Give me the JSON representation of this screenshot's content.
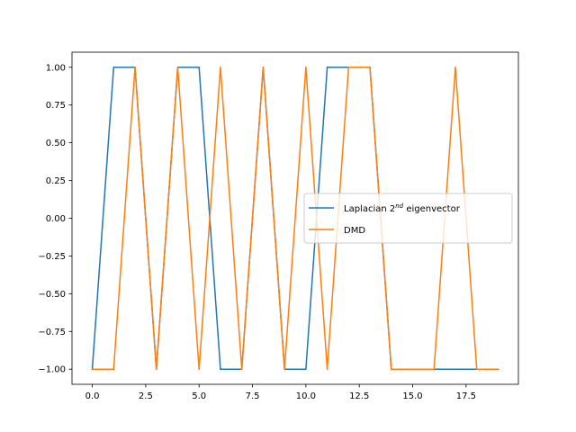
{
  "chart_data": {
    "type": "line",
    "title": "",
    "xlabel": "",
    "ylabel": "",
    "xlim": [
      -0.95,
      19.95
    ],
    "ylim": [
      -1.1,
      1.1
    ],
    "xticks": [
      0,
      2.5,
      5,
      7.5,
      10,
      12.5,
      15,
      17.5
    ],
    "yticks": [
      -1,
      -0.75,
      -0.5,
      -0.25,
      0,
      0.25,
      0.5,
      0.75,
      1
    ],
    "xtick_labels": [
      "0.0",
      "2.5",
      "5.0",
      "7.5",
      "10.0",
      "12.5",
      "15.0",
      "17.5"
    ],
    "ytick_labels": [
      "−1.00",
      "−0.75",
      "−0.50",
      "−0.25",
      "0.00",
      "0.25",
      "0.50",
      "0.75",
      "1.00"
    ],
    "grid": false,
    "legend_position": "center-right",
    "x": [
      0,
      1,
      2,
      3,
      4,
      5,
      6,
      7,
      8,
      9,
      10,
      11,
      12,
      13,
      14,
      15,
      16,
      17,
      18,
      19
    ],
    "series": [
      {
        "name": "Laplacian 2nd eigenvector",
        "legend_base": "Laplacian 2",
        "legend_sup": "nd",
        "legend_rest": " eigenvector",
        "color": "#1f77b4",
        "values": [
          -1,
          1,
          1,
          -1,
          1,
          1,
          -1,
          -1,
          1,
          -1,
          -1,
          1,
          1,
          1,
          -1,
          -1,
          -1,
          -1,
          -1,
          -1
        ]
      },
      {
        "name": "DMD",
        "color": "#ff7f0e",
        "values": [
          -1,
          -1,
          1,
          -1,
          1,
          -1,
          1,
          -1,
          1,
          -1,
          1,
          -1,
          1,
          1,
          -1,
          -1,
          -1,
          1,
          -1,
          -1
        ]
      }
    ]
  }
}
